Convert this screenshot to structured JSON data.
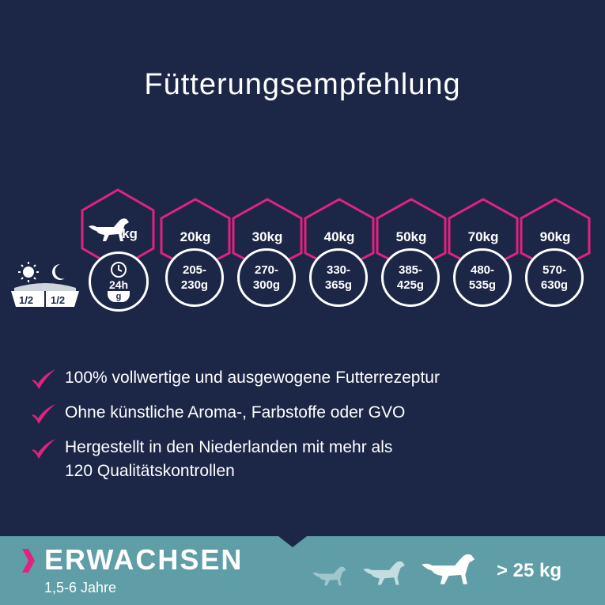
{
  "title": "Fütterungsempfehlung",
  "feeding": {
    "first_unit": "kg",
    "clock_label": "24h",
    "bowl_label": "g",
    "split_left": "1/2",
    "split_right": "1/2",
    "columns": [
      {
        "weight": "20kg",
        "amount_top": "205-",
        "amount_bottom": "230g"
      },
      {
        "weight": "30kg",
        "amount_top": "270-",
        "amount_bottom": "300g"
      },
      {
        "weight": "40kg",
        "amount_top": "330-",
        "amount_bottom": "365g"
      },
      {
        "weight": "50kg",
        "amount_top": "385-",
        "amount_bottom": "425g"
      },
      {
        "weight": "70kg",
        "amount_top": "480-",
        "amount_bottom": "535g"
      },
      {
        "weight": "90kg",
        "amount_top": "570-",
        "amount_bottom": "630g"
      }
    ]
  },
  "features": [
    {
      "line1": "100% vollwertige und ausgewogene Futterrezeptur",
      "line2": ""
    },
    {
      "line1": "Ohne künstliche Aroma-, Farbstoffe oder GVO",
      "line2": ""
    },
    {
      "line1": "Hergestellt in den Niederlanden mit mehr als",
      "line2": "120 Qualitätskontrollen"
    }
  ],
  "banner": {
    "stage": "ERWACHSEN",
    "age": "1,5-6 Jahre",
    "size": "> 25 kg"
  },
  "colors": {
    "background": "#1c2748",
    "accent": "#e0237f",
    "band": "#5f9ea6"
  },
  "icons": [
    "dog-icon",
    "clock-icon",
    "bowl-icon",
    "sun-icon",
    "moon-icon",
    "checkmark-icon",
    "chevron-right-icon"
  ]
}
